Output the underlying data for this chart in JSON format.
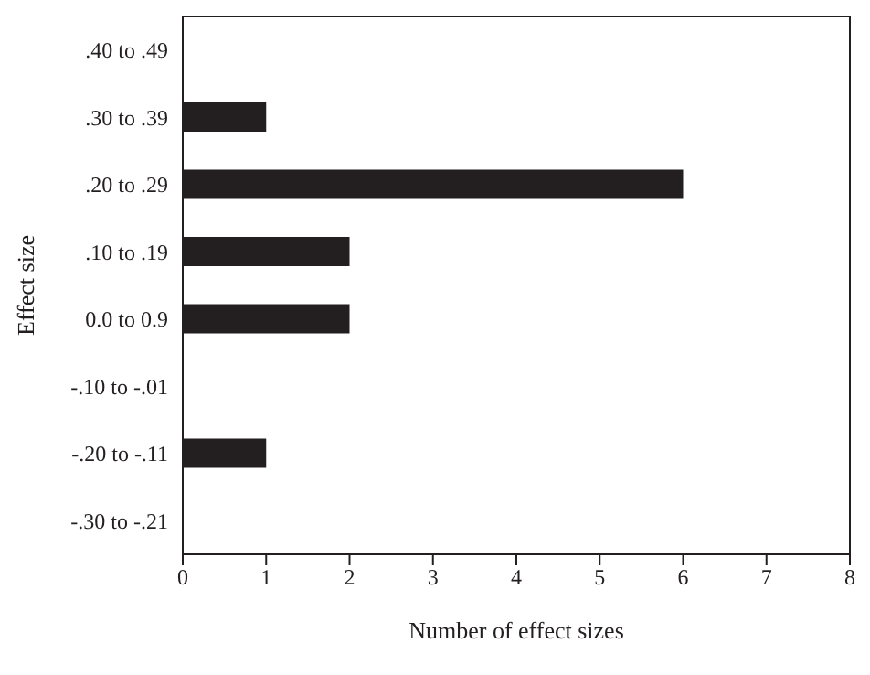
{
  "chart_data": {
    "type": "bar",
    "orientation": "horizontal",
    "xlabel": "Number of effect sizes",
    "ylabel": "Effect size",
    "categories": [
      ".40 to .49",
      ".30 to .39",
      ".20 to .29",
      ".10 to .19",
      "0.0 to 0.9",
      "-.10 to -.01",
      "-.20 to -.11",
      "-.30 to -.21"
    ],
    "values": [
      0,
      1,
      6,
      2,
      2,
      0,
      1,
      0
    ],
    "color": "#231f20",
    "xlim": [
      0,
      8
    ],
    "xticks": [
      0,
      1,
      2,
      3,
      4,
      5,
      6,
      7,
      8
    ],
    "grid": false,
    "legend": false
  }
}
